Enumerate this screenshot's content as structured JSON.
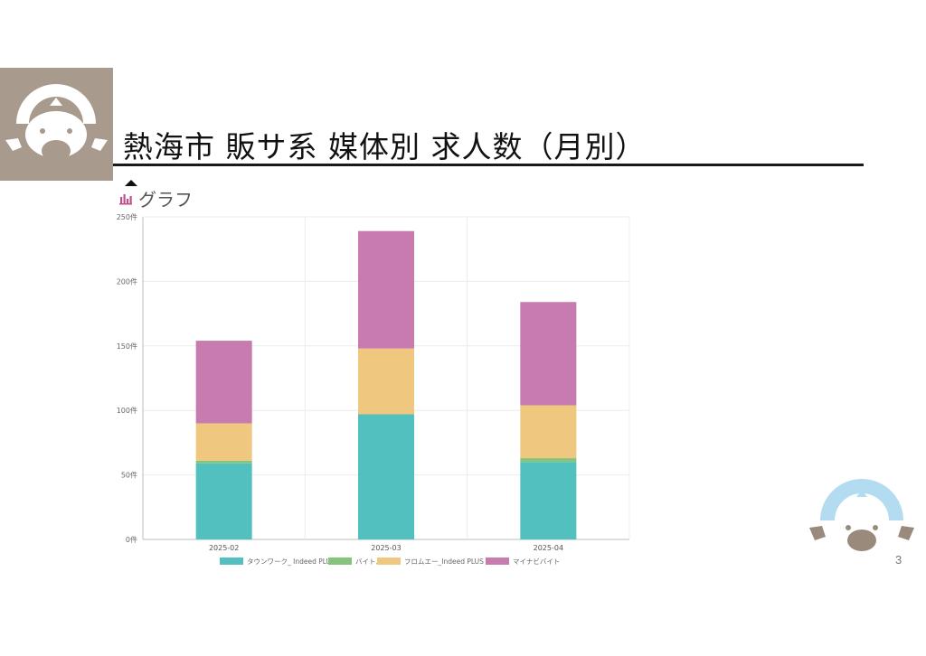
{
  "slide": {
    "title": "熱海市 販サ系 媒体別 求人数（月別）",
    "section_label": "グラフ",
    "page_number": "3"
  },
  "icons": {
    "logo": "platypus-logo-icon",
    "graph": "bar-chart-icon",
    "toggle": "caret-up-icon"
  },
  "colors": {
    "logo_left_bg": "#a89a8c",
    "logo_arc_blue": "#b3dcf0",
    "logo_brown": "#9a8a7b"
  },
  "chart_data": {
    "type": "bar",
    "stacked": true,
    "categories": [
      "2025-02",
      "2025-03",
      "2025-04"
    ],
    "series": [
      {
        "name": "タウンワーク_ Indeed PLUS",
        "color": "#51c0be",
        "values": [
          59,
          97,
          60
        ]
      },
      {
        "name": "バイトル",
        "color": "#86c47e",
        "values": [
          2,
          0,
          3
        ]
      },
      {
        "name": "フロムエー_Indeed PLUS",
        "color": "#efc77f",
        "values": [
          29,
          51,
          41
        ]
      },
      {
        "name": "マイナビバイト",
        "color": "#c77baf",
        "values": [
          64,
          91,
          80
        ]
      }
    ],
    "y_ticks": [
      "0件",
      "50件",
      "100件",
      "150件",
      "200件",
      "250件"
    ],
    "ylim": [
      0,
      250
    ],
    "grid": true,
    "legend": "bottom"
  }
}
